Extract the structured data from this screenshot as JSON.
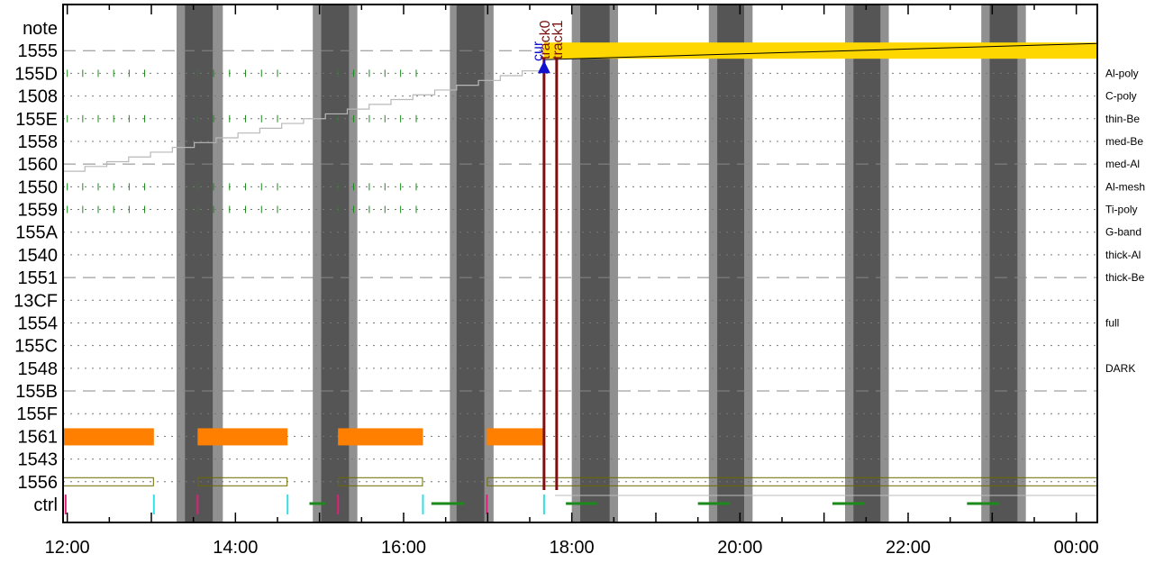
{
  "chart_data": {
    "type": "timeline",
    "x_axis": {
      "start": "12:00",
      "end": "00:15",
      "tick_labels": [
        "12:00",
        "14:00",
        "16:00",
        "18:00",
        "20:00",
        "22:00",
        "00:00"
      ],
      "tick_hours": [
        12,
        14,
        16,
        18,
        20,
        22,
        24
      ],
      "range_hours": [
        11.95,
        24.25
      ]
    },
    "rows": [
      {
        "label": "note",
        "filter": "",
        "line": "none"
      },
      {
        "label": "1555",
        "filter": "",
        "line": "dashed"
      },
      {
        "label": "155D",
        "filter": "Al-poly",
        "line": "dotted"
      },
      {
        "label": "1508",
        "filter": "C-poly",
        "line": "dotted"
      },
      {
        "label": "155E",
        "filter": "thin-Be",
        "line": "dotted"
      },
      {
        "label": "1558",
        "filter": "med-Be",
        "line": "dotted"
      },
      {
        "label": "1560",
        "filter": "med-Al",
        "line": "dashed"
      },
      {
        "label": "1550",
        "filter": "Al-mesh",
        "line": "dotted"
      },
      {
        "label": "1559",
        "filter": "Ti-poly",
        "line": "dotted"
      },
      {
        "label": "155A",
        "filter": "G-band",
        "line": "dotted"
      },
      {
        "label": "1540",
        "filter": "thick-Al",
        "line": "dotted"
      },
      {
        "label": "1551",
        "filter": "thick-Be",
        "line": "dashed"
      },
      {
        "label": "13CF",
        "filter": "",
        "line": "dotted"
      },
      {
        "label": "1554",
        "filter": "full",
        "line": "dotted"
      },
      {
        "label": "155C",
        "filter": "",
        "line": "dotted"
      },
      {
        "label": "1548",
        "filter": "DARK",
        "line": "dotted"
      },
      {
        "label": "155B",
        "filter": "",
        "line": "dashed"
      },
      {
        "label": "155F",
        "filter": "",
        "line": "dotted"
      },
      {
        "label": "1561",
        "filter": "",
        "line": "dotted"
      },
      {
        "label": "1543",
        "filter": "",
        "line": "dotted"
      },
      {
        "label": "1556",
        "filter": "",
        "line": "dotted"
      },
      {
        "label": "ctrl",
        "filter": "",
        "line": "none"
      }
    ],
    "night_bands": [
      {
        "light": [
          13.3,
          13.85
        ],
        "dark": [
          13.4,
          13.73
        ]
      },
      {
        "light": [
          14.92,
          15.45
        ],
        "dark": [
          15.02,
          15.35
        ]
      },
      {
        "light": [
          16.55,
          17.07
        ],
        "dark": [
          16.63,
          16.96
        ]
      },
      {
        "light": [
          18.0,
          18.55
        ],
        "dark": [
          18.1,
          18.45
        ]
      },
      {
        "light": [
          19.63,
          20.15
        ],
        "dark": [
          19.73,
          20.05
        ]
      },
      {
        "light": [
          21.25,
          21.77
        ],
        "dark": [
          21.35,
          21.67
        ]
      },
      {
        "light": [
          22.87,
          23.4
        ],
        "dark": [
          22.97,
          23.3
        ]
      }
    ],
    "bar_segments_1561": [
      [
        11.95,
        13.03
      ],
      [
        13.55,
        14.62
      ],
      [
        15.22,
        16.23
      ],
      [
        16.99,
        17.67
      ]
    ],
    "outline_segments_1556": [
      [
        11.95,
        13.03
      ],
      [
        13.55,
        14.62
      ],
      [
        15.22,
        16.23
      ],
      [
        16.99,
        24.25
      ]
    ],
    "yellow_block_1555": [
      17.67,
      24.25
    ],
    "tick_rows": [
      "155D",
      "155E",
      "1550",
      "1559"
    ],
    "tick_segments": [
      [
        12.0,
        12.92
      ],
      [
        13.55,
        14.5
      ],
      [
        15.22,
        16.15
      ]
    ],
    "staircase_start": {
      "row": "1560",
      "x": 11.95
    },
    "staircase_end": {
      "row": "155D",
      "x": 17.67
    },
    "markers": [
      {
        "label": "track0",
        "x": 17.67,
        "color": "#7a1010"
      },
      {
        "label": "track1",
        "x": 17.82,
        "color": "#7a1010"
      },
      {
        "label": "cur",
        "x": 17.67,
        "color": "#1010d0"
      }
    ],
    "ctrl_events": {
      "magenta": [
        11.98,
        13.55,
        15.22,
        16.99
      ],
      "cyan": [
        13.03,
        14.62,
        16.23,
        17.67
      ],
      "green_segments": [
        [
          14.88,
          15.07
        ],
        [
          16.33,
          16.72
        ],
        [
          17.93,
          18.3
        ],
        [
          19.5,
          19.88
        ],
        [
          21.1,
          21.48
        ],
        [
          22.7,
          23.08
        ]
      ]
    },
    "colors": {
      "orange": "#ff7f00",
      "yellow": "#ffd700",
      "olive": "#6b6b00",
      "band_light": "#909090",
      "band_dark": "#555555",
      "magenta": "#e0207a",
      "cyan": "#30e0e8",
      "green": "#1a8a1a"
    }
  }
}
